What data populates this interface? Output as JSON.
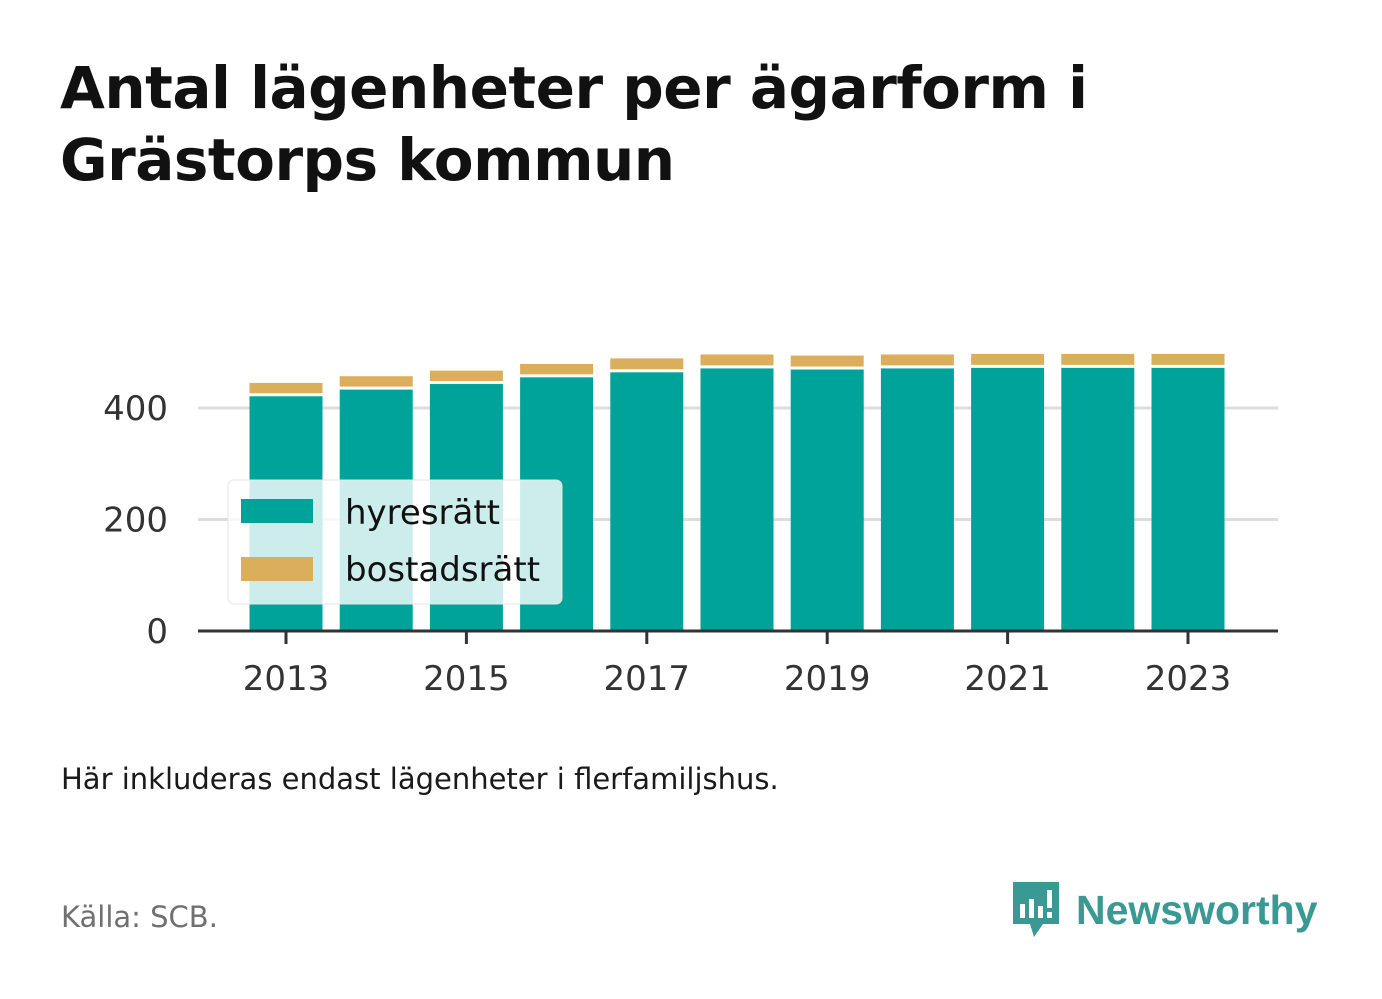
{
  "title": "Antal lägenheter per ägarform i Grästorps kommun",
  "note": "Här inkluderas endast lägenheter i flerfamiljshus.",
  "source": "Källa: SCB.",
  "brand": "Newsworthy",
  "chart_data": {
    "type": "bar",
    "stacked": true,
    "categories": [
      "2013",
      "2014",
      "2015",
      "2016",
      "2017",
      "2018",
      "2019",
      "2020",
      "2021",
      "2022",
      "2023"
    ],
    "x_tick_labels": [
      "2013",
      "2015",
      "2017",
      "2019",
      "2021",
      "2023"
    ],
    "series": [
      {
        "name": "hyresrätt",
        "color": "#00a39a",
        "values": [
          421,
          433,
          443,
          455,
          464,
          471,
          469,
          471,
          472,
          472,
          472
        ]
      },
      {
        "name": "bostadsrätt",
        "color": "#dbae5c",
        "values": [
          24,
          24,
          24,
          24,
          25,
          25,
          25,
          25,
          25,
          25,
          25
        ]
      }
    ],
    "ylim": [
      0,
      500
    ],
    "y_ticks": [
      0,
      200,
      400
    ],
    "grid": true,
    "legend": "bottom-left inside plot",
    "xlabel": "",
    "ylabel": ""
  }
}
